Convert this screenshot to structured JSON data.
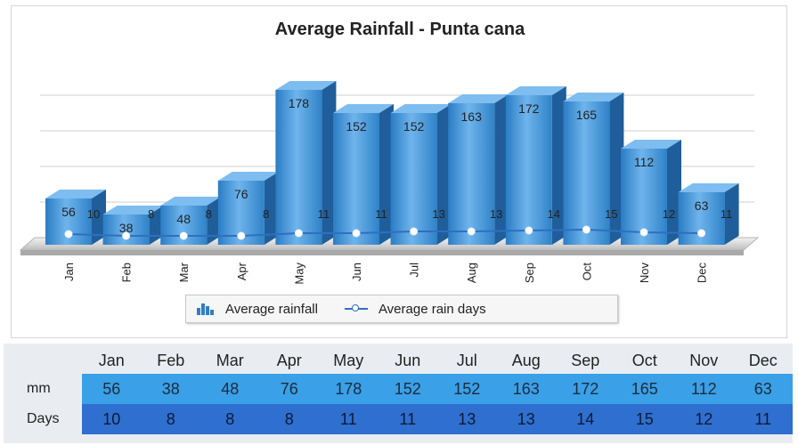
{
  "chart_data": {
    "type": "bar",
    "title": "Average Rainfall - Punta cana",
    "categories": [
      "Jan",
      "Feb",
      "Mar",
      "Apr",
      "May",
      "Jun",
      "Jul",
      "Aug",
      "Sep",
      "Oct",
      "Nov",
      "Dec"
    ],
    "series": [
      {
        "name": "Average rainfall",
        "type": "bar",
        "values": [
          56,
          38,
          48,
          76,
          178,
          152,
          152,
          163,
          172,
          165,
          112,
          63
        ]
      },
      {
        "name": "Average rain days",
        "type": "line",
        "values": [
          10,
          8,
          8,
          8,
          11,
          11,
          13,
          13,
          14,
          15,
          12,
          11
        ]
      }
    ],
    "ylim": [
      0,
      200
    ],
    "grid": true,
    "legend": "bottom",
    "colors": {
      "bar": "#3b8fd6",
      "bar_top": "#7dbdf0",
      "bar_side": "#1f5e9a",
      "line": "#2f6fc0"
    }
  },
  "legend": {
    "rainfall": "Average rainfall",
    "raindays": "Average rain days"
  },
  "table": {
    "months": [
      "Jan",
      "Feb",
      "Mar",
      "Apr",
      "May",
      "Jun",
      "Jul",
      "Aug",
      "Sep",
      "Oct",
      "Nov",
      "Dec"
    ],
    "mm_label": "mm",
    "days_label": "Days",
    "mm": [
      "56",
      "38",
      "48",
      "76",
      "178",
      "152",
      "152",
      "163",
      "172",
      "165",
      "112",
      "63"
    ],
    "days": [
      "10",
      "8",
      "8",
      "8",
      "11",
      "11",
      "13",
      "13",
      "14",
      "15",
      "12",
      "11"
    ]
  }
}
